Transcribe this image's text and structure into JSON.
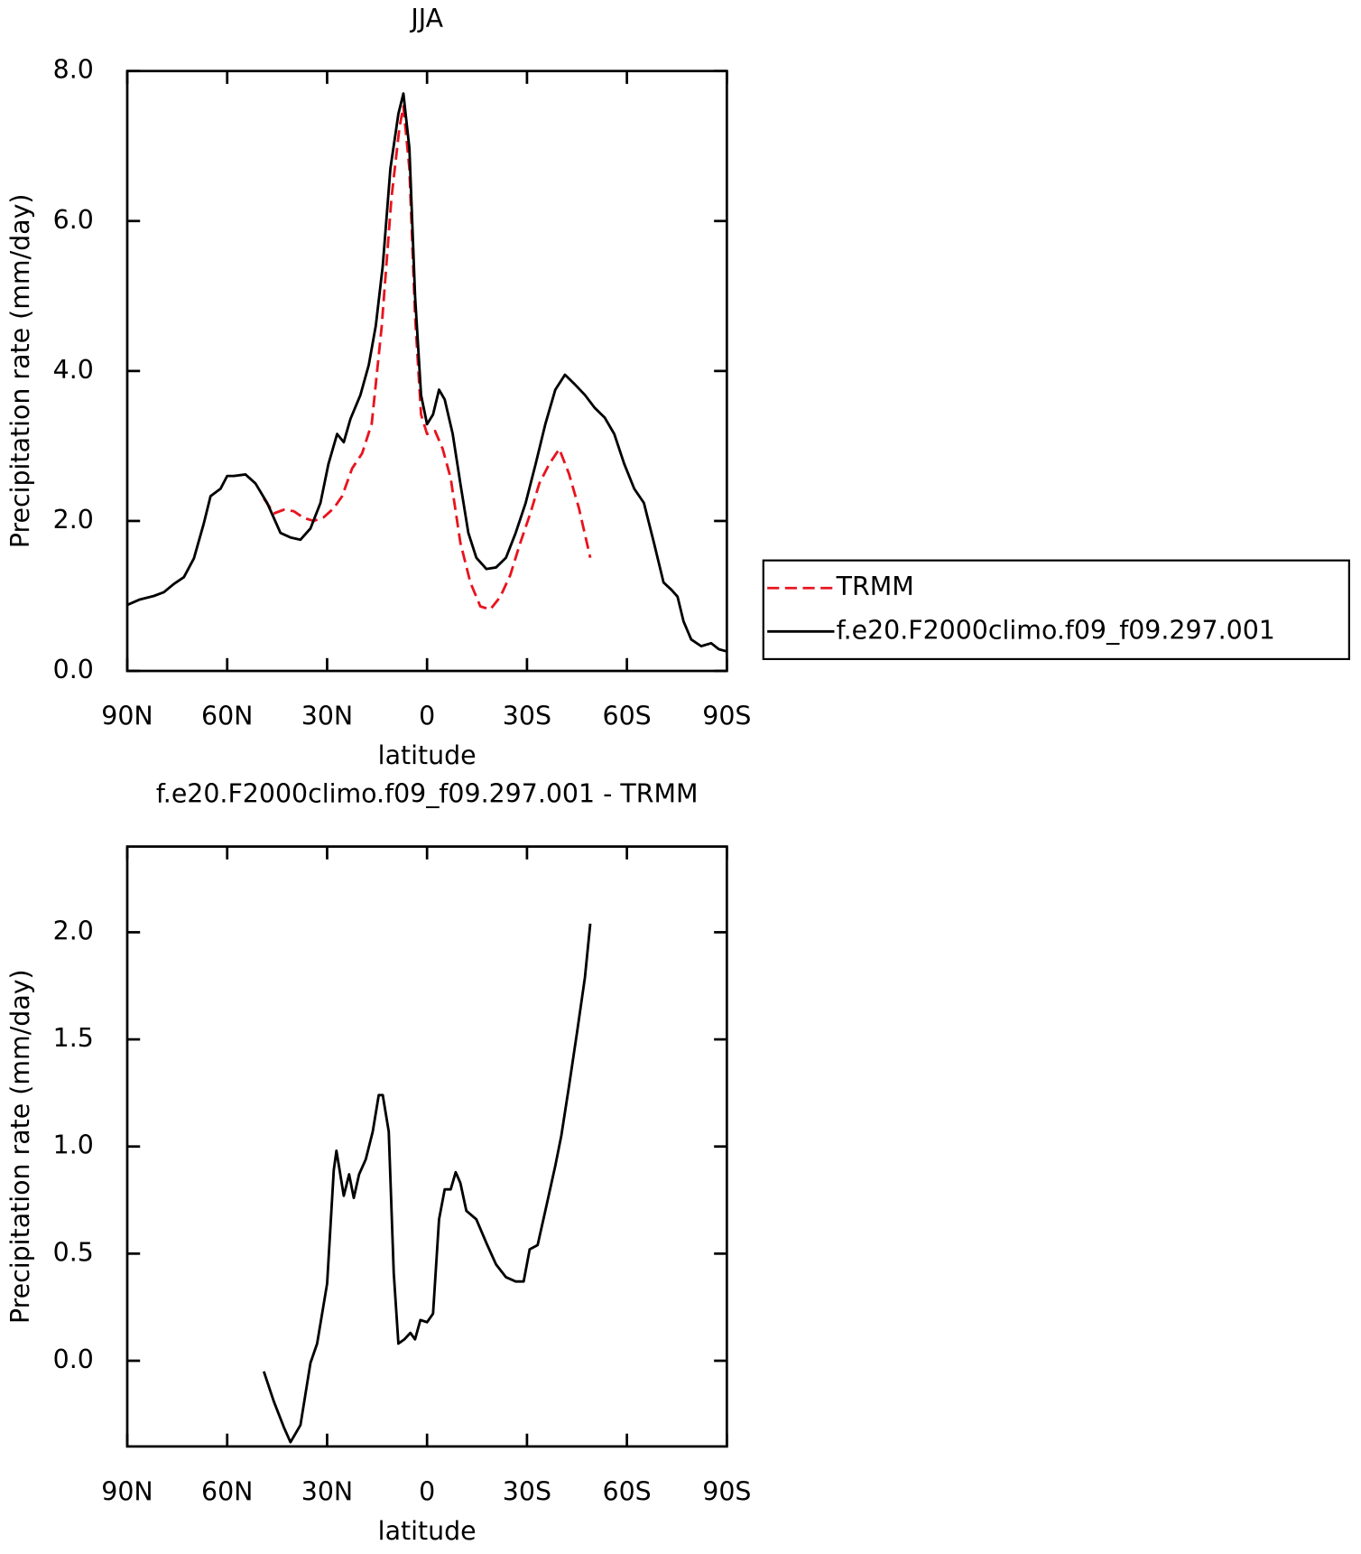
{
  "chart_data": [
    {
      "type": "line",
      "title": "JJA",
      "xlabel": "latitude",
      "ylabel": "Precipitation rate (mm/day)",
      "xlim": [
        90,
        -90
      ],
      "ylim": [
        0,
        8
      ],
      "xticks": [
        {
          "value": 90,
          "label": "90N"
        },
        {
          "value": 60,
          "label": "60N"
        },
        {
          "value": 30,
          "label": "30N"
        },
        0,
        {
          "value": -30,
          "label": "30S"
        },
        {
          "value": -60,
          "label": "60S"
        },
        {
          "value": -90,
          "label": "90S"
        }
      ],
      "yticks": [
        {
          "value": 0,
          "label": "0.0"
        },
        {
          "value": 2,
          "label": "2.0"
        },
        {
          "value": 4,
          "label": "4.0"
        },
        {
          "value": 6,
          "label": "6.0"
        },
        {
          "value": 8,
          "label": "8.0"
        }
      ],
      "legend": "outside-right",
      "series": [
        {
          "name": "TRMM",
          "color": "#e8141e",
          "dash": "dashed",
          "x": [
            49,
            46,
            43,
            40,
            37,
            34,
            31,
            28,
            25.5,
            22.5,
            19.5,
            16.6,
            13.6,
            10.7,
            8.3,
            7.1,
            5.3,
            3.6,
            1.8,
            0,
            -2.4,
            -4.7,
            -7.1,
            -10,
            -13,
            -16,
            -19,
            -22,
            -25,
            -28,
            -31,
            -33.7,
            -36.7,
            -39.7,
            -42.6,
            -45.6,
            -49
          ],
          "values": [
            2.3,
            2.1,
            2.15,
            2.13,
            2.04,
            2.0,
            2.05,
            2.17,
            2.33,
            2.7,
            2.9,
            3.3,
            4.6,
            6.3,
            7.24,
            7.53,
            6.7,
            4.74,
            3.42,
            3.16,
            3.2,
            2.96,
            2.57,
            1.71,
            1.18,
            0.86,
            0.82,
            0.99,
            1.28,
            1.71,
            2.1,
            2.5,
            2.76,
            2.96,
            2.63,
            2.17,
            1.51
          ]
        },
        {
          "name": "f.e20.F2000climo.f09_f09.297.001",
          "color": "#000000",
          "dash": "solid",
          "x": [
            90,
            86.4,
            82,
            79,
            76,
            73,
            70,
            67,
            65,
            62,
            60,
            58,
            54.5,
            51.5,
            48,
            44,
            41,
            38,
            35,
            32,
            29.6,
            27,
            25,
            23,
            20,
            17.5,
            15.4,
            13.3,
            11,
            8.6,
            7.1,
            5.3,
            3.6,
            1.8,
            0,
            -1.8,
            -3.6,
            -5.3,
            -7.7,
            -10,
            -12.4,
            -14.8,
            -17.8,
            -20.7,
            -23.7,
            -26.6,
            -29.6,
            -32.6,
            -35.5,
            -38.5,
            -41.4,
            -44.4,
            -47.4,
            -50.3,
            -53.3,
            -56.2,
            -59.2,
            -62.2,
            -65.1,
            -68.1,
            -71,
            -73.4,
            -75.2,
            -77,
            -79.3,
            -82.3,
            -85.3,
            -87.6,
            -90
          ],
          "values": [
            0.88,
            0.95,
            1.0,
            1.05,
            1.16,
            1.25,
            1.5,
            1.97,
            2.33,
            2.43,
            2.6,
            2.6,
            2.62,
            2.5,
            2.24,
            1.84,
            1.78,
            1.75,
            1.9,
            2.24,
            2.76,
            3.16,
            3.05,
            3.36,
            3.68,
            4.08,
            4.6,
            5.4,
            6.7,
            7.43,
            7.7,
            6.97,
            5.0,
            3.68,
            3.29,
            3.42,
            3.75,
            3.62,
            3.16,
            2.5,
            1.84,
            1.51,
            1.36,
            1.38,
            1.51,
            1.84,
            2.24,
            2.76,
            3.29,
            3.75,
            3.95,
            3.82,
            3.68,
            3.51,
            3.38,
            3.16,
            2.76,
            2.43,
            2.24,
            1.71,
            1.18,
            1.08,
            0.99,
            0.66,
            0.42,
            0.33,
            0.37,
            0.29,
            0.26
          ]
        }
      ]
    },
    {
      "type": "line",
      "title": "f.e20.F2000climo.f09_f09.297.001 - TRMM",
      "xlabel": "latitude",
      "ylabel": "Precipitation rate (mm/day)",
      "xlim": [
        90,
        -90
      ],
      "ylim": [
        -0.4,
        2.4
      ],
      "xticks": [
        {
          "value": 90,
          "label": "90N"
        },
        {
          "value": 60,
          "label": "60N"
        },
        {
          "value": 30,
          "label": "30N"
        },
        0,
        {
          "value": -30,
          "label": "30S"
        },
        {
          "value": -60,
          "label": "60S"
        },
        {
          "value": -90,
          "label": "90S"
        }
      ],
      "yticks": [
        {
          "value": 0,
          "label": "0.0"
        },
        0.5,
        {
          "value": 1,
          "label": "1.0"
        },
        1.5,
        {
          "value": 2,
          "label": "2.0"
        }
      ],
      "series": [
        {
          "color": "#000000",
          "dash": "solid",
          "x": [
            49,
            46,
            43,
            41,
            38,
            35,
            33,
            30,
            28,
            27.2,
            25,
            23.4,
            22,
            20.4,
            18.4,
            16.3,
            14.5,
            13.3,
            11.5,
            10,
            8.6,
            6.8,
            5,
            3.6,
            2,
            0,
            -1.8,
            -3.6,
            -5.3,
            -7.1,
            -8.6,
            -10,
            -11.8,
            -14.8,
            -17.8,
            -20.7,
            -23.7,
            -26.6,
            -29,
            -30.8,
            -33.2,
            -35.5,
            -38.5,
            -40.3,
            -42.6,
            -45,
            -47.4,
            -49
          ],
          "values": [
            -0.05,
            -0.19,
            -0.31,
            -0.38,
            -0.3,
            -0.01,
            0.08,
            0.36,
            0.89,
            0.98,
            0.77,
            0.87,
            0.76,
            0.87,
            0.94,
            1.07,
            1.24,
            1.24,
            1.07,
            0.41,
            0.08,
            0.1,
            0.13,
            0.1,
            0.19,
            0.18,
            0.22,
            0.66,
            0.8,
            0.8,
            0.88,
            0.83,
            0.7,
            0.66,
            0.55,
            0.45,
            0.39,
            0.37,
            0.37,
            0.52,
            0.54,
            0.7,
            0.91,
            1.05,
            1.28,
            1.53,
            1.79,
            2.04
          ]
        }
      ]
    }
  ]
}
